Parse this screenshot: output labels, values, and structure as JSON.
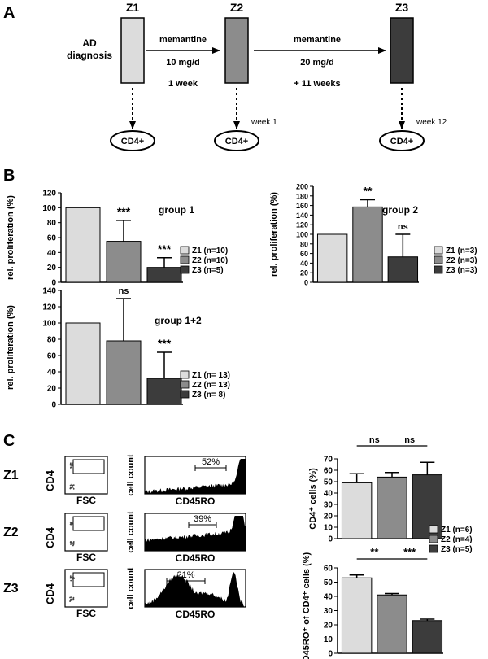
{
  "panelA": {
    "label": "A",
    "ad_diagnosis": [
      "AD",
      "diagnosis"
    ],
    "stages": [
      {
        "label": "Z1",
        "color": "#dcdcdc"
      },
      {
        "label": "Z2",
        "color": "#8c8c8c"
      },
      {
        "label": "Z3",
        "color": "#3c3c3c"
      }
    ],
    "step1": {
      "drug": "memantine",
      "dose": "10 mg/d",
      "duration": "1 week"
    },
    "step2": {
      "drug": "memantine",
      "dose": "20 mg/d",
      "duration": "+ 11 weeks"
    },
    "cell_label": "CD4+",
    "week_labels": [
      "",
      "week 1",
      "week 12"
    ]
  },
  "panelB": {
    "label": "B",
    "colors": [
      "#dcdcdc",
      "#8c8c8c",
      "#3c3c3c"
    ]
  },
  "panelC": {
    "label": "C",
    "rows": [
      {
        "label": "Z1",
        "percent": "52%"
      },
      {
        "label": "Z2",
        "percent": "39%"
      },
      {
        "label": "Z3",
        "percent": "21%"
      }
    ],
    "dot_ylabel": "CD4",
    "dot_xlabel": "FSC",
    "hist_ylabel": "cell count",
    "hist_xlabel": "CD45RO"
  },
  "chart_data": [
    {
      "type": "bar",
      "title": "group 1",
      "ylabel": "rel. proliferation (%)",
      "ylim": [
        0,
        120
      ],
      "yticks": [
        0,
        20,
        40,
        60,
        80,
        100,
        120
      ],
      "categories": [
        "Z1",
        "Z2",
        "Z3"
      ],
      "values": [
        100,
        55,
        20
      ],
      "errors": [
        0,
        28,
        13
      ],
      "significance": [
        "",
        "***",
        "***"
      ],
      "legend": [
        "Z1 (n=10)",
        "Z2 (n=10)",
        "Z3 (n=5)"
      ]
    },
    {
      "type": "bar",
      "title": "group 2",
      "ylabel": "rel. proliferation (%)",
      "ylim": [
        0,
        200
      ],
      "yticks": [
        0,
        20,
        40,
        60,
        80,
        100,
        120,
        140,
        160,
        180,
        200
      ],
      "categories": [
        "Z1",
        "Z2",
        "Z3"
      ],
      "values": [
        100,
        157,
        53
      ],
      "errors": [
        0,
        15,
        47
      ],
      "significance": [
        "",
        "**",
        "ns"
      ],
      "legend": [
        "Z1 (n=3)",
        "Z2 (n=3)",
        "Z3 (n=3)"
      ]
    },
    {
      "type": "bar",
      "title": "group 1+2",
      "ylabel": "rel. proliferation (%)",
      "ylim": [
        0,
        140
      ],
      "yticks": [
        0,
        20,
        40,
        60,
        80,
        100,
        120,
        140
      ],
      "categories": [
        "Z1",
        "Z2",
        "Z3"
      ],
      "values": [
        100,
        78,
        32
      ],
      "errors": [
        0,
        52,
        32
      ],
      "significance": [
        "",
        "ns",
        "***"
      ],
      "legend": [
        "Z1 (n= 13)",
        "Z2 (n= 13)",
        "Z3 (n= 8)"
      ]
    },
    {
      "type": "bar",
      "title": "",
      "ylabel": "CD4⁺ cells (%)",
      "ylim": [
        0,
        70
      ],
      "yticks": [
        0,
        10,
        20,
        30,
        40,
        50,
        60,
        70
      ],
      "categories": [
        "Z1",
        "Z2",
        "Z3"
      ],
      "values": [
        49,
        54,
        56
      ],
      "errors": [
        8,
        4,
        11
      ],
      "brackets": [
        {
          "from": 0,
          "to": 1,
          "label": "ns"
        },
        {
          "from": 1,
          "to": 2,
          "label": "ns"
        }
      ],
      "legend": []
    },
    {
      "type": "bar",
      "title": "",
      "ylabel": "CD45RO⁺ of CD4⁺ cells (%)",
      "ylim": [
        0,
        60
      ],
      "yticks": [
        0,
        10,
        20,
        30,
        40,
        50,
        60
      ],
      "categories": [
        "Z1",
        "Z2",
        "Z3"
      ],
      "values": [
        53,
        41,
        23
      ],
      "errors": [
        2,
        1,
        1
      ],
      "brackets": [
        {
          "from": 0,
          "to": 1,
          "label": "**"
        },
        {
          "from": 1,
          "to": 2,
          "label": "***"
        }
      ],
      "legend": [
        "Z1 (n=6)",
        "Z2 (n=4)",
        "Z3 (n=5)"
      ]
    }
  ]
}
